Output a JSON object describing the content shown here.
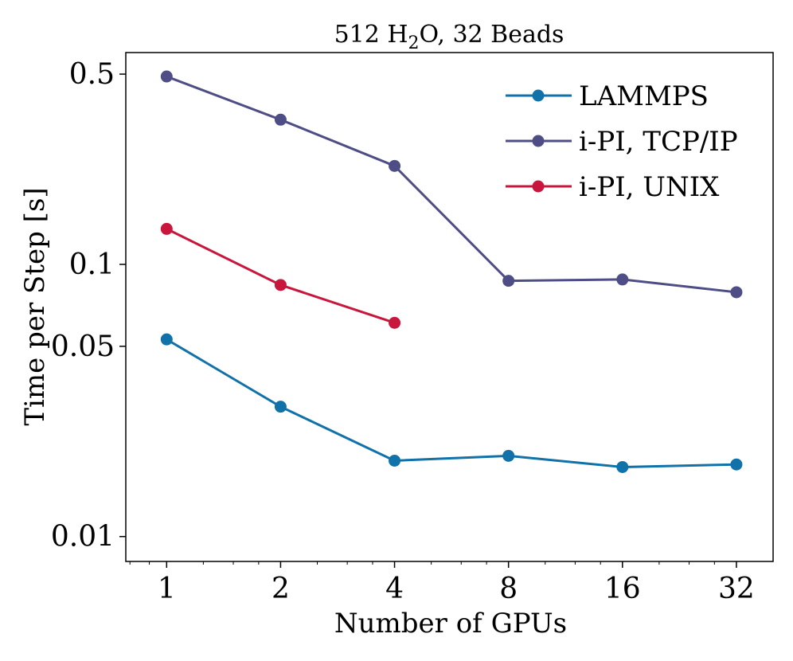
{
  "chart_data": {
    "type": "line",
    "title_parts": [
      "512 H",
      "2",
      "O, 32 Beads"
    ],
    "xlabel": "Number of GPUs",
    "ylabel": "Time per Step [s]",
    "x_scale": "log2",
    "y_scale": "log10",
    "xlim": [
      0.78,
      40
    ],
    "ylim": [
      0.0081,
      0.6
    ],
    "x": [
      1,
      2,
      4,
      8,
      16,
      32
    ],
    "x_tick_labels": [
      "1",
      "2",
      "4",
      "8",
      "16",
      "32"
    ],
    "y_ticks": [
      0.01,
      0.05,
      0.1,
      0.5
    ],
    "y_tick_labels": [
      "0.01",
      "0.05",
      "0.1",
      "0.5"
    ],
    "legend_position": "top-right",
    "series": [
      {
        "name": "LAMMPS",
        "color": "#1171a9",
        "values": [
          0.053,
          0.03,
          0.019,
          0.0198,
          0.018,
          0.0184
        ]
      },
      {
        "name": "i-PI, TCP/IP",
        "color": "#4e4d85",
        "values": [
          0.49,
          0.34,
          0.23,
          0.087,
          0.088,
          0.079
        ]
      },
      {
        "name": "i-PI, UNIX",
        "color": "#c9163c",
        "values": [
          0.135,
          0.084,
          0.061,
          null,
          null,
          null
        ]
      }
    ]
  }
}
